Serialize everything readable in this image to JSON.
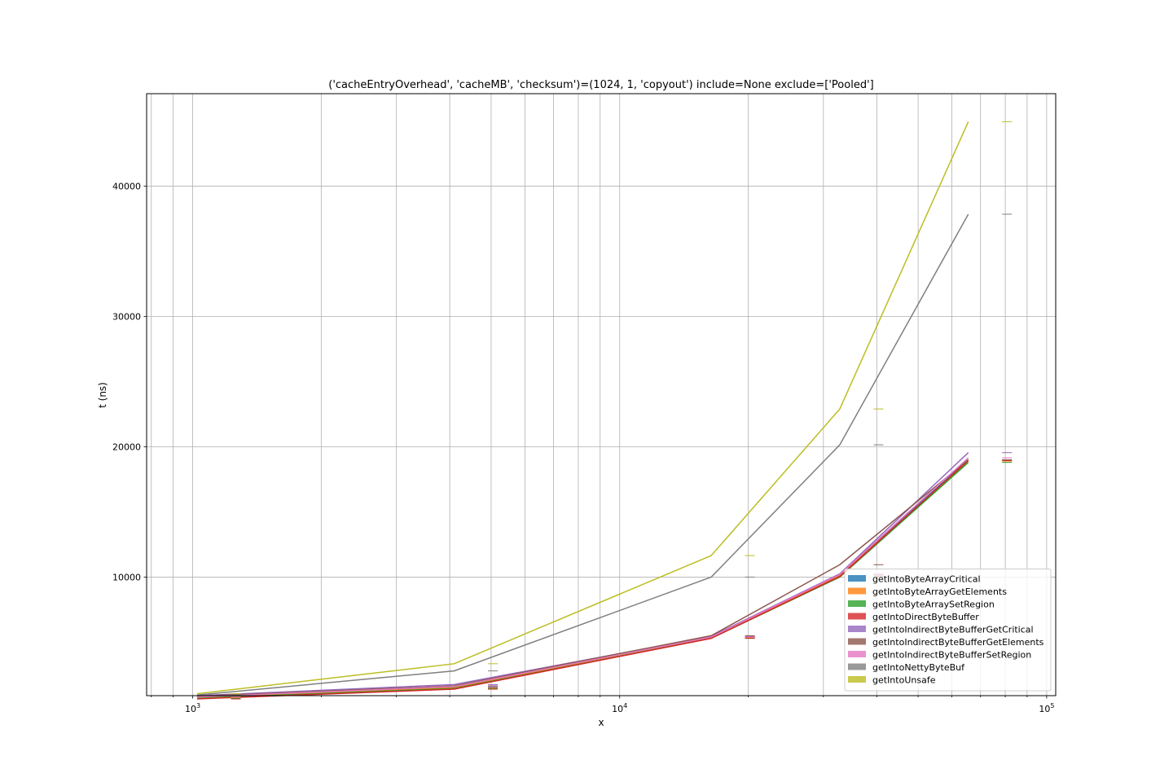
{
  "chart_data": {
    "type": "line",
    "title": "('cacheEntryOverhead', 'cacheMB', 'checksum')=(1024, 1, 'copyout') include=None exclude=['Pooled']",
    "xlabel": "x",
    "ylabel": "t (ns)",
    "xscale": "log",
    "xlim": [
      780,
      105000
    ],
    "ylim": [
      900,
      47100
    ],
    "x_ticks": [
      {
        "value": 1000,
        "base": "10",
        "exp": "3"
      },
      {
        "value": 10000,
        "base": "10",
        "exp": "4"
      },
      {
        "value": 100000,
        "base": "10",
        "exp": "5"
      }
    ],
    "y_ticks": [
      {
        "value": 10000,
        "label": "10000"
      },
      {
        "value": 20000,
        "label": "20000"
      },
      {
        "value": 30000,
        "label": "30000"
      },
      {
        "value": 40000,
        "label": "40000"
      }
    ],
    "grid": true,
    "legend_position": "lower-right",
    "x": [
      1024,
      4096,
      16384,
      32768,
      65536
    ],
    "series": [
      {
        "name": "getIntoByteArrayCritical",
        "color": "#1f77b4",
        "values": [
          800,
          1550,
          5350,
          10150,
          19000
        ]
      },
      {
        "name": "getIntoByteArrayGetElements",
        "color": "#ff7f0e",
        "values": [
          750,
          1500,
          5350,
          10100,
          18900
        ]
      },
      {
        "name": "getIntoByteArraySetRegion",
        "color": "#2ca02c",
        "values": [
          700,
          1450,
          5300,
          10000,
          18800
        ]
      },
      {
        "name": "getIntoDirectByteBuffer",
        "color": "#d62728",
        "values": [
          650,
          1400,
          5300,
          10050,
          18950
        ]
      },
      {
        "name": "getIntoIndirectByteBufferGetCritical",
        "color": "#9467bd",
        "values": [
          900,
          1750,
          5450,
          10250,
          19550
        ]
      },
      {
        "name": "getIntoIndirectByteBufferGetElements",
        "color": "#8c564b",
        "values": [
          850,
          1650,
          5500,
          10950,
          19000
        ]
      },
      {
        "name": "getIntoIndirectByteBufferSetRegion",
        "color": "#e377c2",
        "values": [
          800,
          1600,
          5400,
          10200,
          19150
        ]
      },
      {
        "name": "getIntoNettyByteBuf",
        "color": "#7f7f7f",
        "values": [
          950,
          2800,
          10000,
          20150,
          37850
        ]
      },
      {
        "name": "getIntoUnsafe",
        "color": "#bcbd22",
        "values": [
          1050,
          3350,
          11650,
          22900,
          44950
        ]
      }
    ]
  }
}
